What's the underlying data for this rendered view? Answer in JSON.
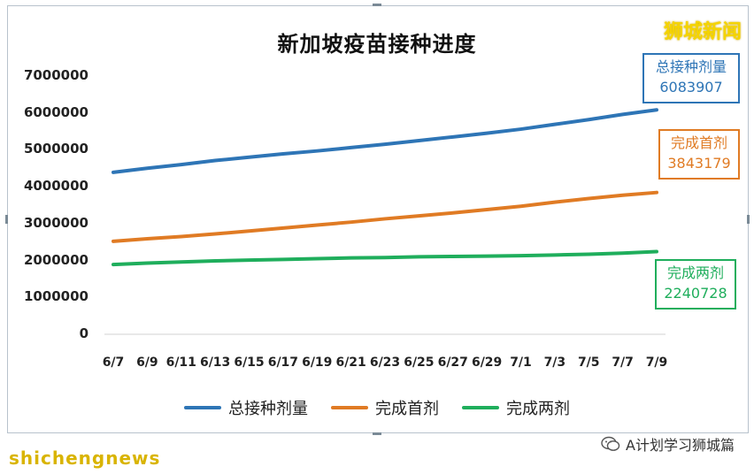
{
  "chart_data": {
    "type": "line",
    "title": "新加坡疫苗接种进度",
    "x": [
      "6/7",
      "6/9",
      "6/11",
      "6/13",
      "6/15",
      "6/17",
      "6/19",
      "6/21",
      "6/23",
      "6/25",
      "6/27",
      "6/29",
      "7/1",
      "7/3",
      "7/5",
      "7/7",
      "7/9"
    ],
    "ylim": [
      0,
      7000000
    ],
    "yticks": [
      "7000000",
      "6000000",
      "5000000",
      "4000000",
      "3000000",
      "2000000",
      "1000000",
      "0"
    ],
    "series": [
      {
        "name": "总接种剂量",
        "color": "#2e75b6",
        "values": [
          4390000,
          4500000,
          4600000,
          4710000,
          4800000,
          4890000,
          4970000,
          5060000,
          5150000,
          5250000,
          5350000,
          5450000,
          5560000,
          5690000,
          5820000,
          5960000,
          6083907
        ]
      },
      {
        "name": "完成首剂",
        "color": "#e07b24",
        "values": [
          2520000,
          2590000,
          2650000,
          2720000,
          2800000,
          2880000,
          2960000,
          3040000,
          3130000,
          3210000,
          3290000,
          3380000,
          3470000,
          3580000,
          3680000,
          3770000,
          3843179
        ]
      },
      {
        "name": "完成两剂",
        "color": "#1fae5c",
        "values": [
          1890000,
          1930000,
          1960000,
          1990000,
          2010000,
          2030000,
          2050000,
          2070000,
          2080000,
          2100000,
          2110000,
          2120000,
          2130000,
          2150000,
          2170000,
          2200000,
          2240728
        ]
      }
    ],
    "legend": "bottom",
    "grid": false
  },
  "callouts": [
    {
      "label": "总接种剂量",
      "value": "6083907",
      "color": "#2e75b6"
    },
    {
      "label": "完成首剂",
      "value": "3843179",
      "color": "#e07b24"
    },
    {
      "label": "完成两剂",
      "value": "2240728",
      "color": "#1fae5c"
    }
  ],
  "brand": "狮城新闻",
  "footer": {
    "left": "shichengnews",
    "right": "A计划学习狮城篇",
    "icon": "wechat-icon"
  }
}
